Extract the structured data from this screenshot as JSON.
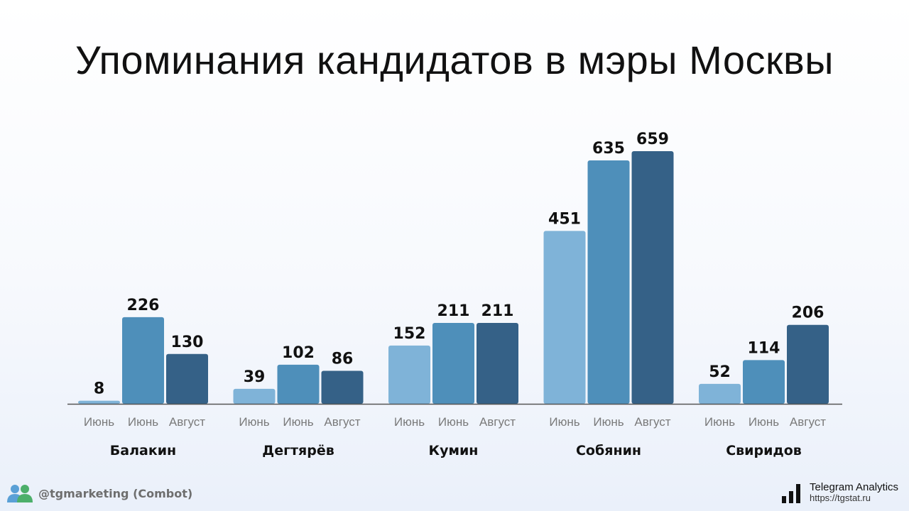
{
  "chart_data": {
    "type": "bar",
    "title": "Упоминания кандидатов в мэры Москвы",
    "groups": [
      "Балакин",
      "Дегтярёв",
      "Кумин",
      "Собянин",
      "Свиридов"
    ],
    "bar_labels": [
      "Июнь",
      "Июнь",
      "Август"
    ],
    "values": [
      [
        8,
        226,
        130
      ],
      [
        39,
        102,
        86
      ],
      [
        152,
        211,
        211
      ],
      [
        451,
        635,
        659
      ],
      [
        52,
        114,
        206
      ]
    ],
    "ylim": [
      0,
      659
    ],
    "grid": false,
    "colors": [
      "#7fb3d8",
      "#4e8fba",
      "#356187"
    ]
  },
  "footer": {
    "source_handle": "@tgmarketing (Combot)",
    "brand_name": "Telegram Analytics",
    "brand_url": "https://tgstat.ru",
    "source_icon": "users-icon",
    "brand_icon": "bar-chart-icon"
  }
}
